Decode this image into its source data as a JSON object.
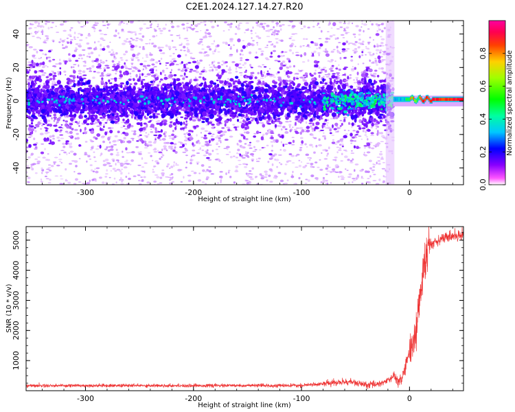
{
  "title": "C2E1.2024.127.14.27.R20",
  "chart_data": [
    {
      "type": "heatmap",
      "xlabel": "Height of straight line (km)",
      "ylabel": "Frequency (Hz)",
      "xlim": [
        -355,
        50
      ],
      "ylim": [
        -50,
        48
      ],
      "xticks": [
        -300,
        -200,
        -100,
        0
      ],
      "yticks": [
        -40,
        -20,
        0,
        20,
        40
      ],
      "colorbar": {
        "label": "Normalized spectral amplitude",
        "range": [
          0,
          1
        ],
        "ticks": [
          "0.0",
          "0.2",
          "0.4",
          "0.6",
          "0.8"
        ],
        "colormap": [
          "#ffffff",
          "#e8c8ff",
          "#9b30ff",
          "#5a00ff",
          "#0000ff",
          "#00e0ff",
          "#00ff40",
          "#c8ff00",
          "#ff8000",
          "#ff0000",
          "#ff00a0"
        ]
      },
      "description_bands": [
        {
          "x_range": [
            -355,
            -15
          ],
          "freq_spread_hz": 48,
          "core_spread_hz": 8,
          "level": "low-moderate"
        },
        {
          "x_range": [
            -80,
            -15
          ],
          "core_spread_hz": 6,
          "level": "moderate-high"
        },
        {
          "x_range": [
            -15,
            50
          ],
          "core_spread_hz": 2,
          "level": "high"
        }
      ],
      "grid": false
    },
    {
      "type": "line",
      "xlabel": "Height of straight line (km)",
      "ylabel": "SNR (10 * v/v)",
      "xlim": [
        -355,
        50
      ],
      "ylim": [
        0,
        5450
      ],
      "xticks": [
        -300,
        -200,
        -100,
        0
      ],
      "yticks": [
        1000,
        2000,
        3000,
        4000,
        5000
      ],
      "series_color": "#ee3333",
      "keypoints": [
        {
          "x": -355,
          "y": 170
        },
        {
          "x": -100,
          "y": 170
        },
        {
          "x": -75,
          "y": 250
        },
        {
          "x": -55,
          "y": 300
        },
        {
          "x": -40,
          "y": 180
        },
        {
          "x": -25,
          "y": 260
        },
        {
          "x": -15,
          "y": 450
        },
        {
          "x": -8,
          "y": 300
        },
        {
          "x": -3,
          "y": 900
        },
        {
          "x": 2,
          "y": 1500
        },
        {
          "x": 6,
          "y": 2000
        },
        {
          "x": 10,
          "y": 3200
        },
        {
          "x": 14,
          "y": 4200
        },
        {
          "x": 18,
          "y": 4800
        },
        {
          "x": 25,
          "y": 5000
        },
        {
          "x": 35,
          "y": 5100
        },
        {
          "x": 50,
          "y": 5200
        }
      ],
      "grid": false
    }
  ]
}
